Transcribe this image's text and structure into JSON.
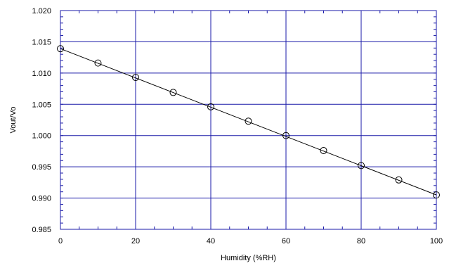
{
  "chart_data": {
    "type": "scatter",
    "title": "",
    "xlabel": "Humidity (%RH)",
    "ylabel": "Vout/Vo",
    "xlim": [
      0,
      100
    ],
    "ylim": [
      0.985,
      1.02
    ],
    "xticks": [
      0,
      20,
      40,
      60,
      80,
      100
    ],
    "xtick_labels": [
      "0",
      "20",
      "40",
      "60",
      "80",
      "100"
    ],
    "yticks": [
      0.985,
      0.99,
      0.995,
      1.0,
      1.005,
      1.01,
      1.015,
      1.02
    ],
    "ytick_labels": [
      "0.985",
      "0.990",
      "0.995",
      "1.000",
      "1.005",
      "1.010",
      "1.015",
      "1.020"
    ],
    "grid": true,
    "series": [
      {
        "marker": "open-circle",
        "x": [
          0,
          10,
          20,
          30,
          40,
          50,
          60,
          70,
          80,
          90,
          100
        ],
        "y": [
          1.0139,
          1.0116,
          1.0093,
          1.0069,
          1.0046,
          1.0023,
          1.0,
          0.9976,
          0.9952,
          0.9929,
          0.9905
        ]
      }
    ],
    "fit_line": {
      "x": [
        0,
        100
      ],
      "y": [
        1.0139,
        0.9905
      ]
    },
    "colors": {
      "grid": "#1a1aa8",
      "marks": "#000000",
      "background": "#ffffff"
    }
  }
}
